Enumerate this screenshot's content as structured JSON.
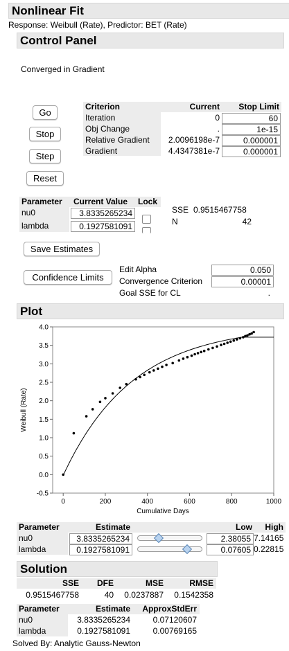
{
  "report": {
    "title": "Nonlinear Fit",
    "response_line": "Response: Weibull (Rate), Predictor: BET (Rate)"
  },
  "control_panel": {
    "title": "Control Panel",
    "status": "Converged in Gradient",
    "buttons": {
      "go": "Go",
      "stop": "Stop",
      "step": "Step",
      "reset": "Reset"
    },
    "criteria": {
      "headers": [
        "Criterion",
        "Current",
        "Stop Limit"
      ],
      "rows": [
        {
          "name": "Iteration",
          "current": "0",
          "limit": "60"
        },
        {
          "name": "Obj Change",
          "current": ".",
          "limit": "1e-15"
        },
        {
          "name": "Relative Gradient",
          "current": "2.0096198e-7",
          "limit": "0.000001"
        },
        {
          "name": "Gradient",
          "current": "4.4347381e-7",
          "limit": "0.000001"
        }
      ]
    },
    "params": {
      "headers": [
        "Parameter",
        "Current Value",
        "Lock"
      ],
      "rows": [
        {
          "name": "nu0",
          "value": "3.8335265234"
        },
        {
          "name": "lambda",
          "value": "0.1927581091"
        }
      ]
    },
    "sse_label": "SSE",
    "sse_value": "0.9515467758",
    "n_label": "N",
    "n_value": "42",
    "save_estimates": "Save Estimates",
    "confidence_limits": "Confidence Limits",
    "edit_alpha_label": "Edit Alpha",
    "edit_alpha_value": "0.050",
    "conv_label": "Convergence Criterion",
    "conv_value": "0.00001",
    "goal_label": "Goal SSE for CL",
    "goal_value": "."
  },
  "plot": {
    "title": "Plot",
    "chart_data": {
      "type": "scatter",
      "xlabel": "Cumulative Days",
      "ylabel": "Weibull (Rate)",
      "xlim": [
        -50,
        1000
      ],
      "ylim": [
        -0.5,
        4.0
      ],
      "xticks": [
        "0",
        "200",
        "400",
        "600",
        "800",
        "1000"
      ],
      "xtick_values": [
        0,
        200,
        400,
        600,
        800,
        1000
      ],
      "yticks": [
        "-0.5",
        "0.0",
        "0.5",
        "1.0",
        "1.5",
        "2.0",
        "2.5",
        "3.0",
        "3.5",
        "4.0"
      ],
      "ytick_values": [
        -0.5,
        0.0,
        0.5,
        1.0,
        1.5,
        2.0,
        2.5,
        3.0,
        3.5,
        4.0
      ],
      "grid": false,
      "points": [
        [
          0,
          0.0
        ],
        [
          50,
          1.12
        ],
        [
          110,
          1.58
        ],
        [
          140,
          1.77
        ],
        [
          175,
          1.97
        ],
        [
          200,
          2.07
        ],
        [
          235,
          2.2
        ],
        [
          270,
          2.35
        ],
        [
          300,
          2.45
        ],
        [
          345,
          2.58
        ],
        [
          365,
          2.64
        ],
        [
          385,
          2.7
        ],
        [
          410,
          2.77
        ],
        [
          430,
          2.82
        ],
        [
          450,
          2.87
        ],
        [
          470,
          2.92
        ],
        [
          490,
          2.97
        ],
        [
          520,
          3.02
        ],
        [
          550,
          3.09
        ],
        [
          570,
          3.14
        ],
        [
          590,
          3.18
        ],
        [
          610,
          3.22
        ],
        [
          625,
          3.26
        ],
        [
          640,
          3.29
        ],
        [
          655,
          3.32
        ],
        [
          670,
          3.35
        ],
        [
          690,
          3.39
        ],
        [
          710,
          3.43
        ],
        [
          730,
          3.47
        ],
        [
          750,
          3.51
        ],
        [
          765,
          3.54
        ],
        [
          780,
          3.57
        ],
        [
          795,
          3.6
        ],
        [
          810,
          3.63
        ],
        [
          825,
          3.66
        ],
        [
          840,
          3.69
        ],
        [
          855,
          3.72
        ],
        [
          865,
          3.75
        ],
        [
          875,
          3.77
        ],
        [
          885,
          3.8
        ],
        [
          895,
          3.82
        ],
        [
          905,
          3.86
        ]
      ],
      "curve": {
        "nu0": 3.8335265234,
        "lambda": 0.1927581091,
        "x0": 0,
        "x_end": 1000
      }
    }
  },
  "estimates": {
    "headers": [
      "Parameter",
      "Estimate",
      "Low",
      "High"
    ],
    "rows": [
      {
        "name": "nu0",
        "estimate": "3.8335265234",
        "low": "2.38055",
        "high": "7.14165",
        "slider_pos": 0.3
      },
      {
        "name": "lambda",
        "estimate": "0.1927581091",
        "low": "0.07605",
        "high": "0.22815",
        "slider_pos": 0.8
      }
    ]
  },
  "solution": {
    "title": "Solution",
    "headers": [
      "SSE",
      "DFE",
      "MSE",
      "RMSE"
    ],
    "values": [
      "0.9515467758",
      "40",
      "0.0237887",
      "0.1542358"
    ],
    "param_headers": [
      "Parameter",
      "Estimate",
      "ApproxStdErr"
    ],
    "param_rows": [
      {
        "name": "nu0",
        "estimate": "3.8335265234",
        "stderr": "0.07120607"
      },
      {
        "name": "lambda",
        "estimate": "0.1927581091",
        "stderr": "0.00769165"
      }
    ],
    "solved_by": "Solved By:  Analytic Gauss-Newton"
  }
}
